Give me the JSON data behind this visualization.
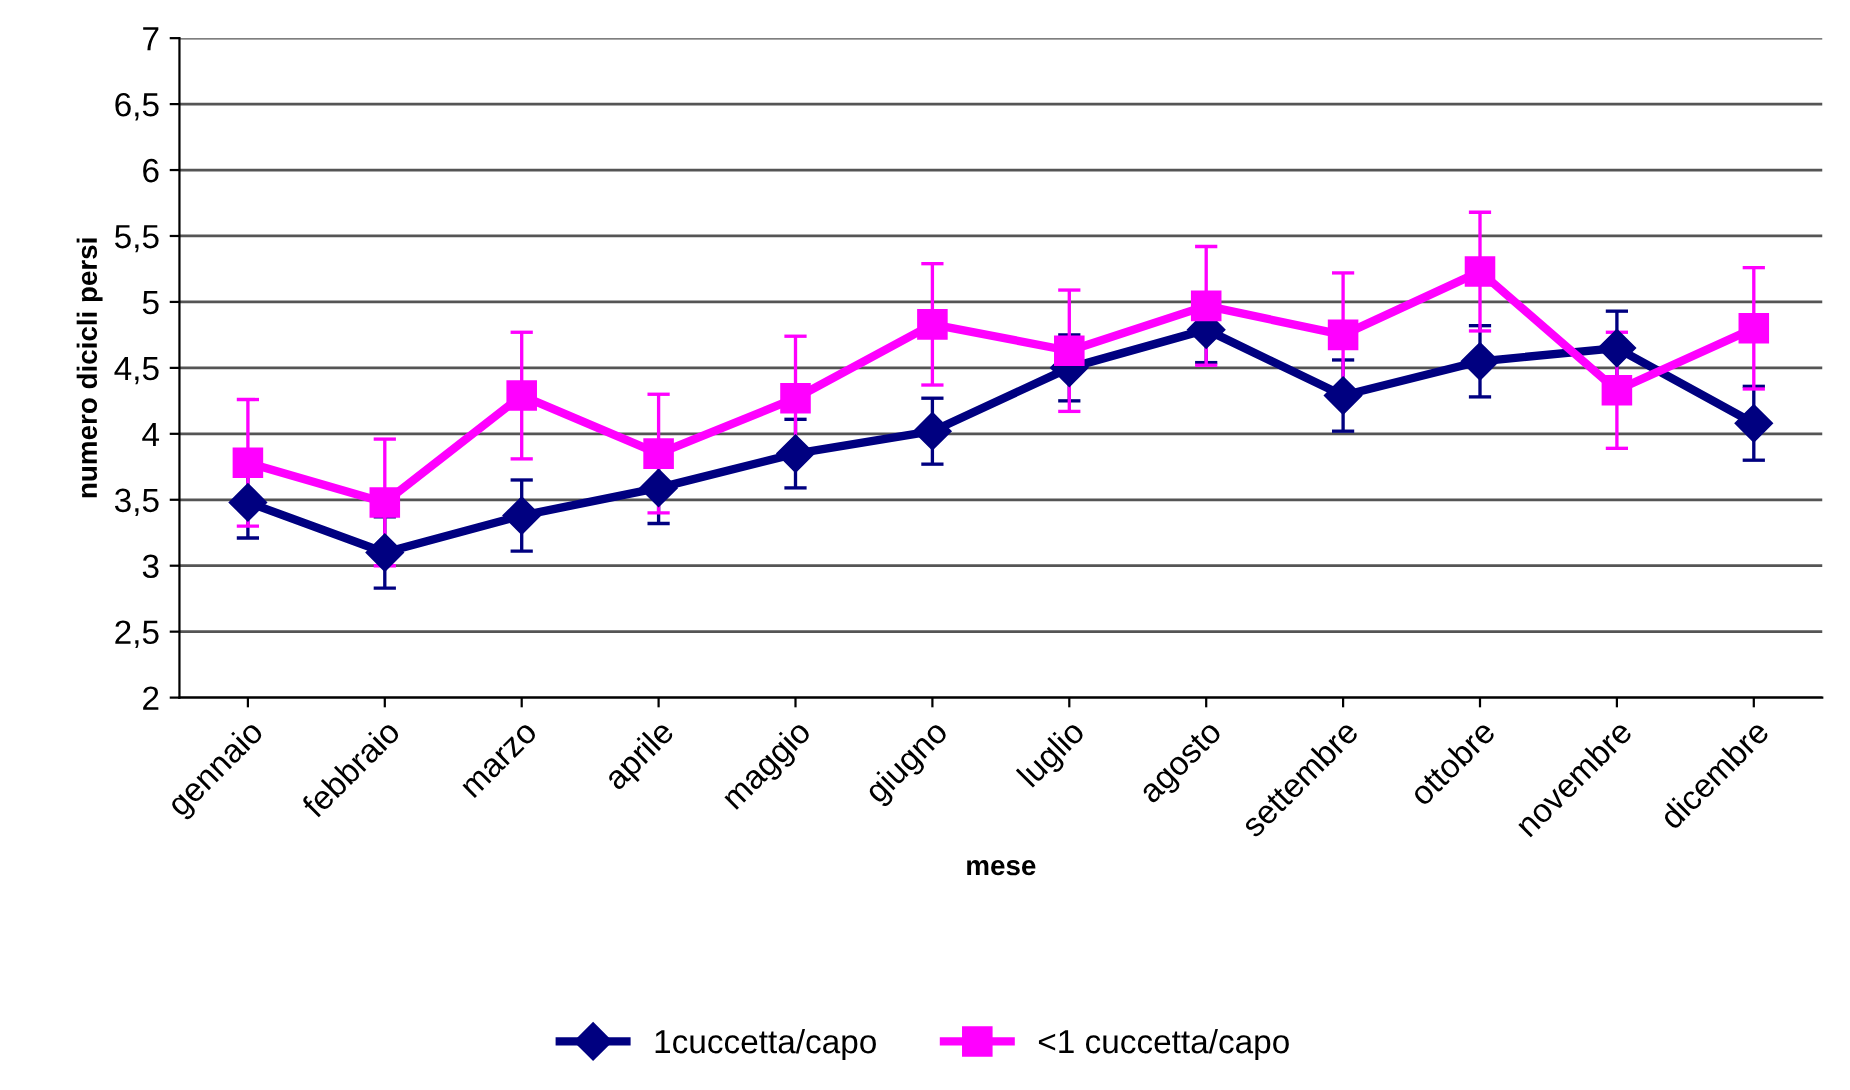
{
  "chart_data": {
    "type": "line",
    "xlabel": "mese",
    "ylabel": "numero dicicli persi",
    "categories": [
      "gennaio",
      "febbraio",
      "marzo",
      "aprile",
      "maggio",
      "giugno",
      "luglio",
      "agosto",
      "settembre",
      "ottobre",
      "novembre",
      "dicembre"
    ],
    "series": [
      {
        "name": "1cuccetta/capo",
        "color": "#000080",
        "marker": "diamond",
        "values": [
          3.48,
          3.1,
          3.38,
          3.59,
          3.85,
          4.02,
          4.5,
          4.79,
          4.29,
          4.55,
          4.65,
          4.08
        ],
        "errors": [
          0.27,
          0.27,
          0.27,
          0.27,
          0.26,
          0.25,
          0.25,
          0.25,
          0.27,
          0.27,
          0.28,
          0.28
        ]
      },
      {
        "name": "<1 cuccetta/capo",
        "color": "#ff00ff",
        "marker": "square",
        "values": [
          3.78,
          3.48,
          4.29,
          3.85,
          4.27,
          4.83,
          4.63,
          4.97,
          4.75,
          5.23,
          4.33,
          4.8
        ],
        "errors": [
          0.48,
          0.48,
          0.48,
          0.45,
          0.47,
          0.46,
          0.46,
          0.45,
          0.47,
          0.45,
          0.44,
          0.46
        ]
      }
    ],
    "ylim": [
      2,
      7
    ],
    "yticks": [
      {
        "value": 2,
        "label": "2"
      },
      {
        "value": 2.5,
        "label": "2,5"
      },
      {
        "value": 3,
        "label": "3"
      },
      {
        "value": 3.5,
        "label": "3,5"
      },
      {
        "value": 4,
        "label": "4"
      },
      {
        "value": 4.5,
        "label": "4,5"
      },
      {
        "value": 5,
        "label": "5"
      },
      {
        "value": 5.5,
        "label": "5,5"
      },
      {
        "value": 6,
        "label": "6"
      },
      {
        "value": 6.5,
        "label": "6,5"
      },
      {
        "value": 7,
        "label": "7"
      }
    ],
    "grid": "y",
    "legend": "bottom",
    "line_style": "solid"
  }
}
